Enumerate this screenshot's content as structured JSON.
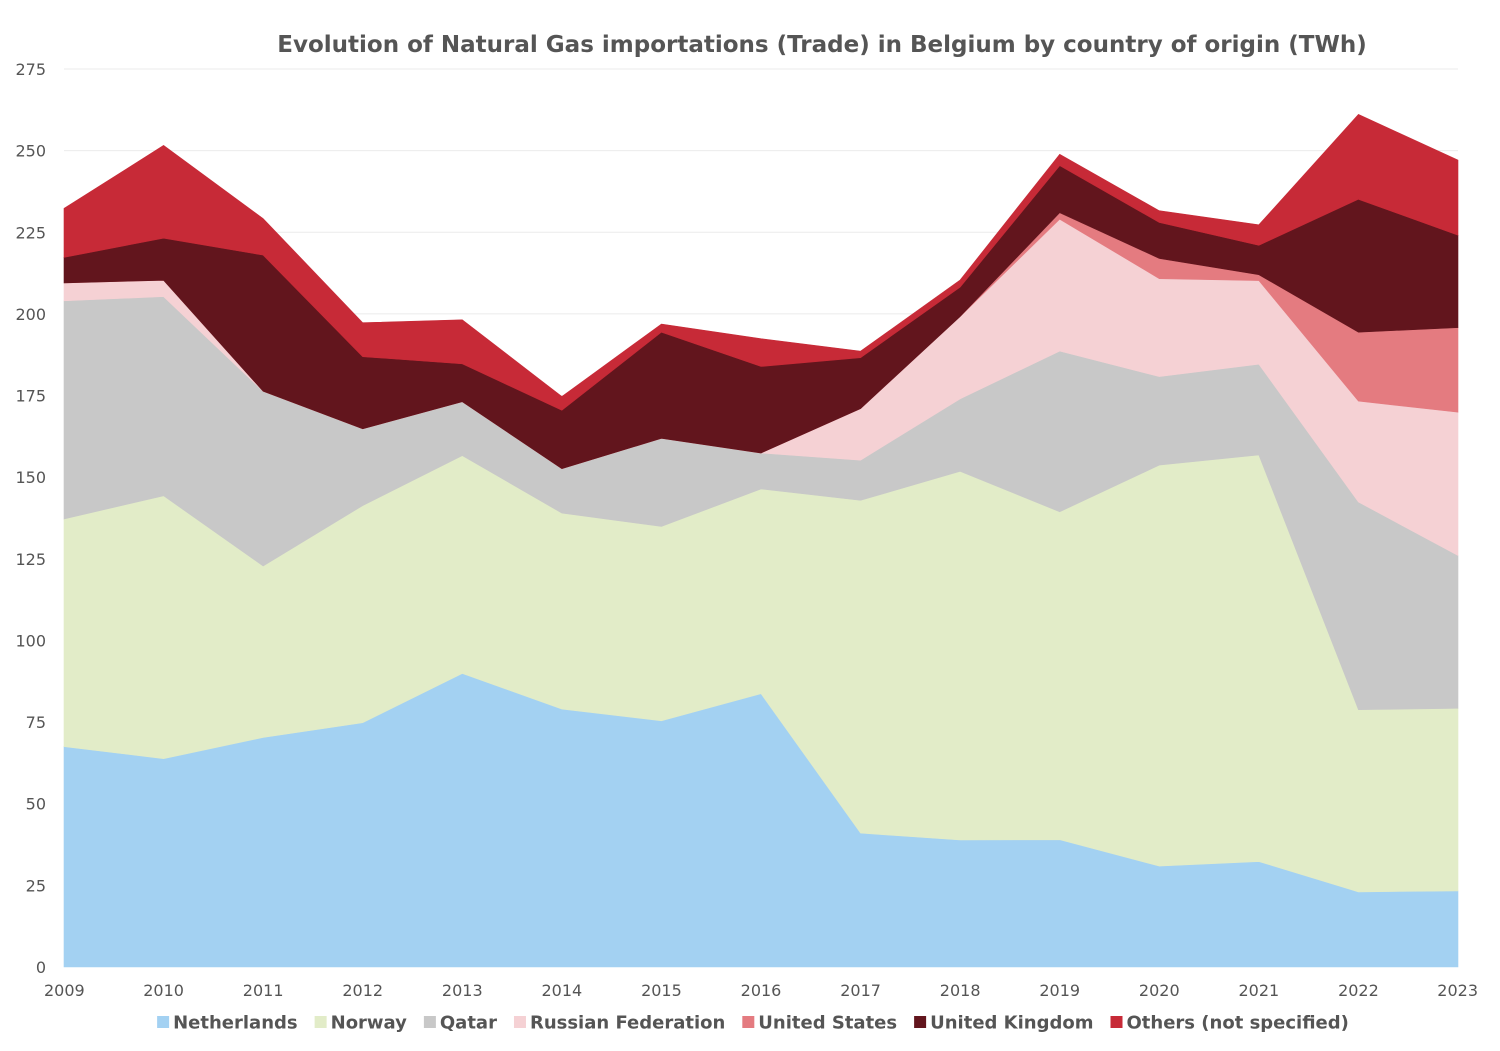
{
  "chart_data": {
    "type": "area",
    "stacked": true,
    "title": "Evolution of Natural Gas importations (Trade) in Belgium by country of origin (TWh)",
    "xlabel": "",
    "ylabel": "",
    "x": [
      "2009",
      "2010",
      "2011",
      "2012",
      "2013",
      "2014",
      "2015",
      "2016",
      "2017",
      "2018",
      "2019",
      "2020",
      "2021",
      "2022",
      "2023"
    ],
    "ylim": [
      0,
      275
    ],
    "yticks": [
      0,
      25,
      50,
      75,
      100,
      125,
      150,
      175,
      200,
      225,
      250,
      275
    ],
    "grid": true,
    "legend_position": "bottom",
    "series": [
      {
        "name": "Netherlands",
        "color": "#a3d1f2",
        "values": [
          67.5,
          63.8,
          70.3,
          74.8,
          89.9,
          79.0,
          75.4,
          83.7,
          41.0,
          38.9,
          39.0,
          30.9,
          32.3,
          23.0,
          23.3
        ]
      },
      {
        "name": "Norway",
        "color": "#e2ecc8",
        "values": [
          69.7,
          80.5,
          52.5,
          66.5,
          66.7,
          60.0,
          59.5,
          62.7,
          101.9,
          112.9,
          100.4,
          122.8,
          124.5,
          55.8,
          55.9
        ]
      },
      {
        "name": "Qatar",
        "color": "#c8c8c8",
        "values": [
          66.8,
          61.0,
          53.5,
          23.5,
          16.5,
          13.6,
          27.0,
          11.0,
          12.3,
          22.2,
          49.2,
          27.1,
          27.8,
          63.6,
          46.8
        ]
      },
      {
        "name": "Russian Federation",
        "color": "#f5d1d4",
        "values": [
          5.5,
          5.0,
          0.0,
          0.0,
          0.0,
          0.0,
          0.0,
          0.0,
          15.8,
          25.2,
          40.4,
          30.0,
          25.6,
          30.9,
          43.9
        ]
      },
      {
        "name": "United States",
        "color": "#e47b80",
        "values": [
          0.0,
          0.0,
          0.0,
          0.0,
          0.0,
          0.0,
          0.0,
          0.0,
          0.0,
          0.0,
          2.0,
          6.2,
          1.8,
          21.1,
          25.9
        ]
      },
      {
        "name": "United Kingdom",
        "color": "#62151d",
        "values": [
          7.8,
          12.9,
          41.7,
          22.1,
          11.6,
          17.9,
          32.5,
          26.5,
          15.6,
          9.0,
          14.4,
          11.0,
          9.0,
          40.7,
          28.3
        ]
      },
      {
        "name": "Others (not specified)",
        "color": "#c72a37",
        "values": [
          15.0,
          28.4,
          11.2,
          10.4,
          13.5,
          4.2,
          2.5,
          8.5,
          2.0,
          2.2,
          3.5,
          3.6,
          6.3,
          26.0,
          23.0
        ]
      }
    ]
  }
}
